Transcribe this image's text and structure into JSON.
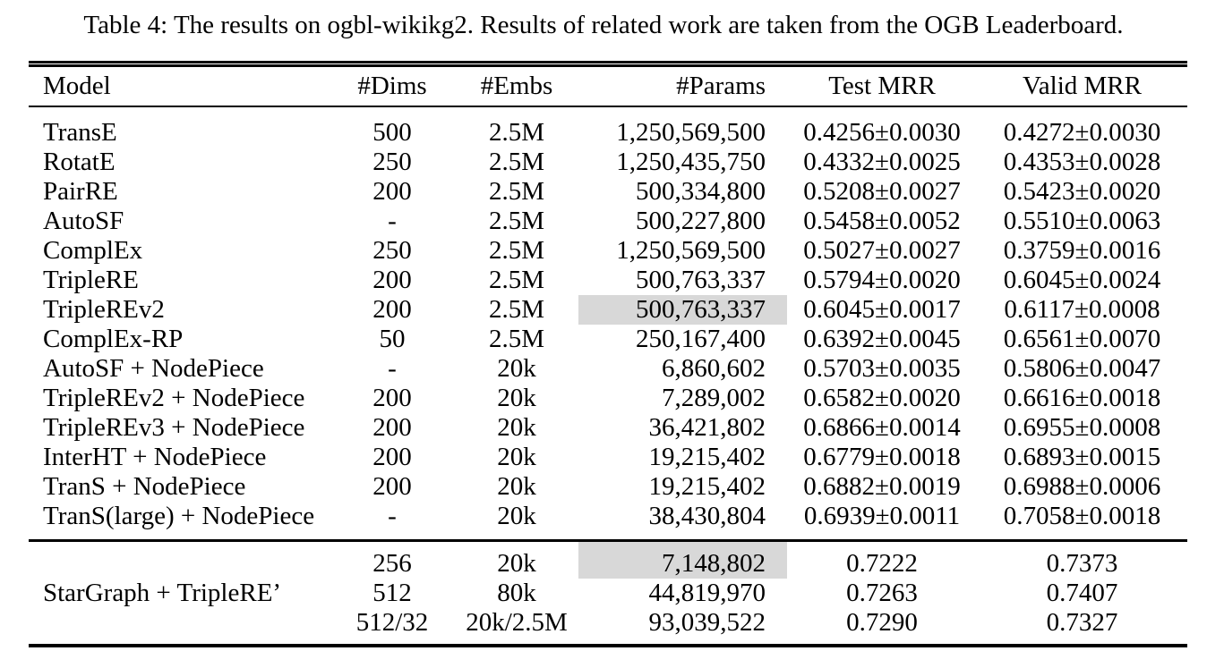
{
  "title": "Table 4: The results on ogbl-wikikg2. Results of related work are taken from the OGB Leaderboard.",
  "colors": {
    "highlight": "#d8d8d8",
    "text": "#000000",
    "rule": "#000000",
    "background": "#ffffff"
  },
  "table": {
    "columns": [
      "Model",
      "#Dims",
      "#Embs",
      "#Params",
      "Test MRR",
      "Valid MRR"
    ],
    "rows": [
      {
        "model": "TransE",
        "dims": "500",
        "embs": "2.5M",
        "params": "1,250,569,500",
        "test": "0.4256±0.0030",
        "valid": "0.4272±0.0030",
        "params_highlight": false
      },
      {
        "model": "RotatE",
        "dims": "250",
        "embs": "2.5M",
        "params": "1,250,435,750",
        "test": "0.4332±0.0025",
        "valid": "0.4353±0.0028",
        "params_highlight": false
      },
      {
        "model": "PairRE",
        "dims": "200",
        "embs": "2.5M",
        "params": "500,334,800",
        "test": "0.5208±0.0027",
        "valid": "0.5423±0.0020",
        "params_highlight": false
      },
      {
        "model": "AutoSF",
        "dims": "-",
        "embs": "2.5M",
        "params": "500,227,800",
        "test": "0.5458±0.0052",
        "valid": "0.5510±0.0063",
        "params_highlight": false
      },
      {
        "model": "ComplEx",
        "dims": "250",
        "embs": "2.5M",
        "params": "1,250,569,500",
        "test": "0.5027±0.0027",
        "valid": "0.3759±0.0016",
        "params_highlight": false
      },
      {
        "model": "TripleRE",
        "dims": "200",
        "embs": "2.5M",
        "params": "500,763,337",
        "test": "0.5794±0.0020",
        "valid": "0.6045±0.0024",
        "params_highlight": false
      },
      {
        "model": "TripleREv2",
        "dims": "200",
        "embs": "2.5M",
        "params": "500,763,337",
        "test": "0.6045±0.0017",
        "valid": "0.6117±0.0008",
        "params_highlight": true
      },
      {
        "model": "ComplEx-RP",
        "dims": "50",
        "embs": "2.5M",
        "params": "250,167,400",
        "test": "0.6392±0.0045",
        "valid": "0.6561±0.0070",
        "params_highlight": false
      },
      {
        "model": "AutoSF + NodePiece",
        "dims": "-",
        "embs": "20k",
        "params": "6,860,602",
        "test": "0.5703±0.0035",
        "valid": "0.5806±0.0047",
        "params_highlight": false
      },
      {
        "model": "TripleREv2 + NodePiece",
        "dims": "200",
        "embs": "20k",
        "params": "7,289,002",
        "test": "0.6582±0.0020",
        "valid": "0.6616±0.0018",
        "params_highlight": false
      },
      {
        "model": "TripleREv3 + NodePiece",
        "dims": "200",
        "embs": "20k",
        "params": "36,421,802",
        "test": "0.6866±0.0014",
        "valid": "0.6955±0.0008",
        "params_highlight": false
      },
      {
        "model": "InterHT + NodePiece",
        "dims": "200",
        "embs": "20k",
        "params": "19,215,402",
        "test": "0.6779±0.0018",
        "valid": "0.6893±0.0015",
        "params_highlight": false
      },
      {
        "model": "TranS + NodePiece",
        "dims": "200",
        "embs": "20k",
        "params": "19,215,402",
        "test": "0.6882±0.0019",
        "valid": "0.6988±0.0006",
        "params_highlight": false
      },
      {
        "model": "TranS(large) + NodePiece",
        "dims": "-",
        "embs": "20k",
        "params": "38,430,804",
        "test": "0.6939±0.0011",
        "valid": "0.7058±0.0018",
        "params_highlight": false
      }
    ],
    "group": {
      "model": "StarGraph + TripleRE’",
      "rows": [
        {
          "dims": "256",
          "embs": "20k",
          "params": "7,148,802",
          "test": "0.7222",
          "valid": "0.7373",
          "params_highlight": true
        },
        {
          "dims": "512",
          "embs": "80k",
          "params": "44,819,970",
          "test": "0.7263",
          "valid": "0.7407",
          "params_highlight": false
        },
        {
          "dims": "512/32",
          "embs": "20k/2.5M",
          "params": "93,039,522",
          "test": "0.7290",
          "valid": "0.7327",
          "params_highlight": false
        }
      ]
    }
  }
}
